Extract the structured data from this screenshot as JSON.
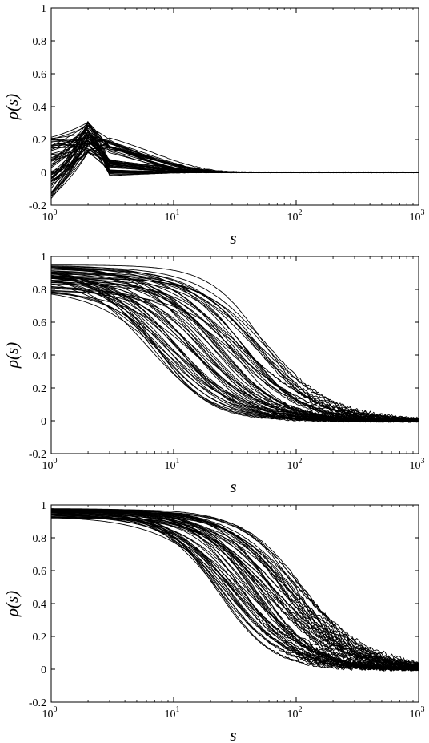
{
  "chart_data": [
    {
      "type": "line",
      "panel": "top",
      "description_of_series": "many overlapping black autocorrelation curves",
      "xlabel": "s",
      "ylabel": "ρ(s)",
      "xscale": "log",
      "xlim": [
        1,
        1000
      ],
      "ylim": [
        -0.2,
        1
      ],
      "yticks": [
        "-0.2",
        "0",
        "0.2",
        "0.4",
        "0.6",
        "0.8",
        "1"
      ],
      "xticks": [
        {
          "base": "10",
          "exp": "0"
        },
        {
          "base": "10",
          "exp": "1"
        },
        {
          "base": "10",
          "exp": "2"
        },
        {
          "base": "10",
          "exp": "3"
        }
      ],
      "grid": false,
      "line_color": "#000000",
      "series_count": 60,
      "series_model": "spike",
      "representative_series": [
        {
          "x": [
            1,
            2,
            3,
            4,
            5,
            7,
            10,
            20,
            30,
            100,
            1000
          ],
          "y": [
            0.02,
            0.2,
            0.09,
            0.08,
            0.07,
            0.05,
            0.03,
            0.01,
            0.0,
            0.0,
            0.0
          ]
        },
        {
          "x": [
            1,
            2,
            3,
            5,
            10,
            20,
            100,
            1000
          ],
          "y": [
            0.22,
            0.31,
            0.21,
            0.17,
            0.08,
            0.02,
            0.0,
            0.0
          ]
        },
        {
          "x": [
            1,
            2,
            3,
            5,
            10,
            20,
            100,
            1000
          ],
          "y": [
            -0.16,
            0.13,
            -0.02,
            0.03,
            0.01,
            0.0,
            0.0,
            0.0
          ]
        }
      ]
    },
    {
      "type": "line",
      "panel": "middle",
      "xlabel": "s",
      "ylabel": "ρ(s)",
      "xscale": "log",
      "xlim": [
        1,
        1000
      ],
      "ylim": [
        -0.2,
        1
      ],
      "yticks": [
        "-0.2",
        "0",
        "0.2",
        "0.4",
        "0.6",
        "0.8",
        "1"
      ],
      "xticks": [
        {
          "base": "10",
          "exp": "0"
        },
        {
          "base": "10",
          "exp": "1"
        },
        {
          "base": "10",
          "exp": "2"
        },
        {
          "base": "10",
          "exp": "3"
        }
      ],
      "grid": false,
      "line_color": "#000000",
      "series_count": 60,
      "series_model": "decay",
      "s1_at_one": [
        0.77,
        0.95
      ],
      "half_decay_s_range": [
        6,
        60
      ],
      "representative_series": [
        {
          "x": [
            1,
            2,
            5,
            10,
            20,
            50,
            100,
            1000
          ],
          "y": [
            0.77,
            0.68,
            0.4,
            0.1,
            0.01,
            0.0,
            0.0,
            0.0
          ]
        },
        {
          "x": [
            1,
            2,
            5,
            10,
            20,
            50,
            100,
            200,
            1000
          ],
          "y": [
            0.95,
            0.9,
            0.78,
            0.62,
            0.45,
            0.24,
            0.12,
            0.05,
            0.01
          ]
        }
      ]
    },
    {
      "type": "line",
      "panel": "bottom",
      "xlabel": "s",
      "ylabel": "ρ(s)",
      "xscale": "log",
      "xlim": [
        1,
        1000
      ],
      "ylim": [
        -0.2,
        1
      ],
      "yticks": [
        "-0.2",
        "0",
        "0.2",
        "0.4",
        "0.6",
        "0.8",
        "1"
      ],
      "xticks": [
        {
          "base": "10",
          "exp": "0"
        },
        {
          "base": "10",
          "exp": "1"
        },
        {
          "base": "10",
          "exp": "2"
        },
        {
          "base": "10",
          "exp": "3"
        }
      ],
      "grid": false,
      "line_color": "#000000",
      "series_count": 60,
      "series_model": "decay",
      "s1_at_one": [
        0.92,
        0.98
      ],
      "half_decay_s_range": [
        22,
        120
      ],
      "representative_series": [
        {
          "x": [
            1,
            5,
            10,
            20,
            50,
            100,
            200,
            1000
          ],
          "y": [
            0.92,
            0.8,
            0.68,
            0.48,
            0.15,
            0.02,
            0.0,
            0.0
          ]
        },
        {
          "x": [
            1,
            5,
            10,
            20,
            50,
            100,
            200,
            500,
            1000
          ],
          "y": [
            0.98,
            0.95,
            0.9,
            0.83,
            0.6,
            0.38,
            0.16,
            0.04,
            0.01
          ]
        }
      ]
    }
  ]
}
